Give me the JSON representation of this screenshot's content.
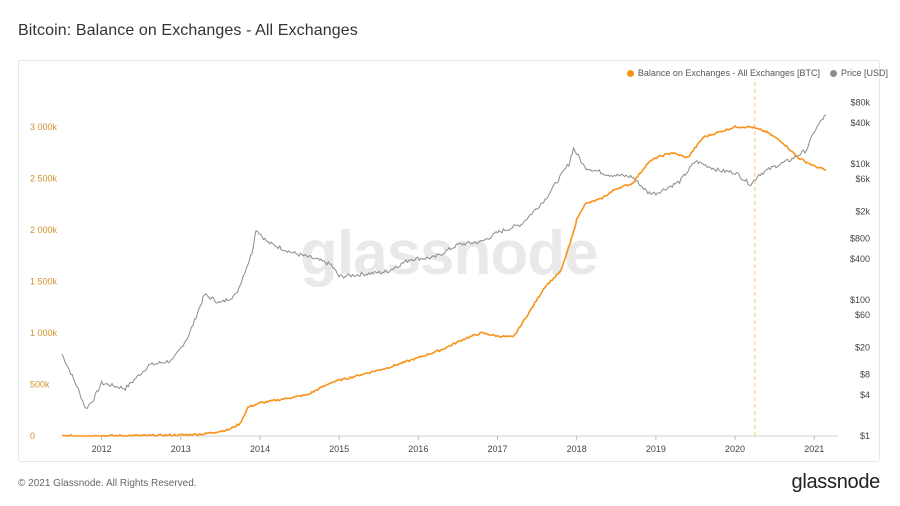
{
  "header": {
    "title": "Bitcoin: Balance on Exchanges - All Exchanges"
  },
  "footer": {
    "copyright": "© 2021 Glassnode. All Rights Reserved.",
    "logo": "glassnode"
  },
  "watermark": "glassnode",
  "colors": {
    "balance": "#f7931a",
    "price": "#8c8c8c",
    "left_axis": "#d4902a",
    "event_line": "#f4c27a"
  },
  "chart_data": {
    "type": "line",
    "title": "Bitcoin: Balance on Exchanges - All Exchanges",
    "legend": [
      "Balance on Exchanges - All Exchanges [BTC]",
      "Price [USD]"
    ],
    "legend_position": "top-right",
    "x_ticks": [
      "2012",
      "2013",
      "2014",
      "2015",
      "2016",
      "2017",
      "2018",
      "2019",
      "2020",
      "2021"
    ],
    "x_range": [
      2011.5,
      2021.3
    ],
    "y_left": {
      "ticks": [
        0,
        500000,
        1000000,
        1500000,
        2000000,
        2500000,
        3000000
      ],
      "tick_labels": [
        "0",
        "500k",
        "1 000k",
        "1 500k",
        "2 000k",
        "2 500k",
        "3 000k"
      ],
      "range": [
        0,
        3300000
      ]
    },
    "y_right": {
      "scale": "log",
      "ticks": [
        1,
        4,
        8,
        20,
        60,
        100,
        400,
        800,
        2000,
        6000,
        10000,
        40000,
        80000
      ],
      "tick_labels": [
        "$1",
        "$4",
        "$8",
        "$20",
        "$60",
        "$100",
        "$400",
        "$800",
        "$2k",
        "$6k",
        "$10k",
        "$40k",
        "$80k"
      ],
      "range": [
        1,
        100000
      ]
    },
    "event_line_x": 2020.25,
    "grid": "off",
    "series": [
      {
        "name": "Balance on Exchanges - All Exchanges [BTC]",
        "axis": "left",
        "points": [
          [
            2011.5,
            0
          ],
          [
            2012.0,
            2000
          ],
          [
            2012.5,
            4000
          ],
          [
            2013.0,
            10000
          ],
          [
            2013.3,
            20000
          ],
          [
            2013.6,
            60000
          ],
          [
            2013.75,
            120000
          ],
          [
            2013.85,
            280000
          ],
          [
            2014.0,
            320000
          ],
          [
            2014.3,
            360000
          ],
          [
            2014.6,
            400000
          ],
          [
            2014.9,
            520000
          ],
          [
            2015.2,
            580000
          ],
          [
            2015.6,
            660000
          ],
          [
            2016.0,
            760000
          ],
          [
            2016.3,
            840000
          ],
          [
            2016.6,
            950000
          ],
          [
            2016.8,
            1000000
          ],
          [
            2017.0,
            970000
          ],
          [
            2017.2,
            960000
          ],
          [
            2017.4,
            1200000
          ],
          [
            2017.6,
            1450000
          ],
          [
            2017.8,
            1600000
          ],
          [
            2017.95,
            1950000
          ],
          [
            2018.0,
            2100000
          ],
          [
            2018.1,
            2250000
          ],
          [
            2018.3,
            2300000
          ],
          [
            2018.5,
            2400000
          ],
          [
            2018.7,
            2450000
          ],
          [
            2018.9,
            2650000
          ],
          [
            2019.0,
            2700000
          ],
          [
            2019.2,
            2750000
          ],
          [
            2019.4,
            2700000
          ],
          [
            2019.6,
            2900000
          ],
          [
            2019.8,
            2950000
          ],
          [
            2020.0,
            3000000
          ],
          [
            2020.2,
            3000000
          ],
          [
            2020.4,
            2950000
          ],
          [
            2020.6,
            2850000
          ],
          [
            2020.8,
            2700000
          ],
          [
            2021.0,
            2620000
          ],
          [
            2021.15,
            2580000
          ]
        ]
      },
      {
        "name": "Price [USD]",
        "axis": "right",
        "points": [
          [
            2011.5,
            16
          ],
          [
            2011.7,
            5
          ],
          [
            2011.8,
            2.5
          ],
          [
            2011.9,
            3.5
          ],
          [
            2012.0,
            6
          ],
          [
            2012.3,
            5
          ],
          [
            2012.6,
            11
          ],
          [
            2012.9,
            13
          ],
          [
            2013.1,
            30
          ],
          [
            2013.3,
            120
          ],
          [
            2013.5,
            90
          ],
          [
            2013.7,
            120
          ],
          [
            2013.9,
            500
          ],
          [
            2013.95,
            1100
          ],
          [
            2014.1,
            700
          ],
          [
            2014.4,
            500
          ],
          [
            2014.7,
            400
          ],
          [
            2014.9,
            330
          ],
          [
            2015.0,
            220
          ],
          [
            2015.3,
            240
          ],
          [
            2015.6,
            260
          ],
          [
            2015.9,
            400
          ],
          [
            2016.2,
            420
          ],
          [
            2016.5,
            650
          ],
          [
            2016.8,
            720
          ],
          [
            2017.0,
            980
          ],
          [
            2017.3,
            1300
          ],
          [
            2017.6,
            3000
          ],
          [
            2017.9,
            10000
          ],
          [
            2017.96,
            17000
          ],
          [
            2018.1,
            9000
          ],
          [
            2018.4,
            7000
          ],
          [
            2018.7,
            6500
          ],
          [
            2018.9,
            3800
          ],
          [
            2019.0,
            3700
          ],
          [
            2019.3,
            5500
          ],
          [
            2019.5,
            11000
          ],
          [
            2019.8,
            8000
          ],
          [
            2020.0,
            7500
          ],
          [
            2020.2,
            5000
          ],
          [
            2020.3,
            7000
          ],
          [
            2020.5,
            9200
          ],
          [
            2020.7,
            11500
          ],
          [
            2020.9,
            16000
          ],
          [
            2021.0,
            30000
          ],
          [
            2021.1,
            45000
          ],
          [
            2021.15,
            52000
          ]
        ]
      }
    ]
  }
}
